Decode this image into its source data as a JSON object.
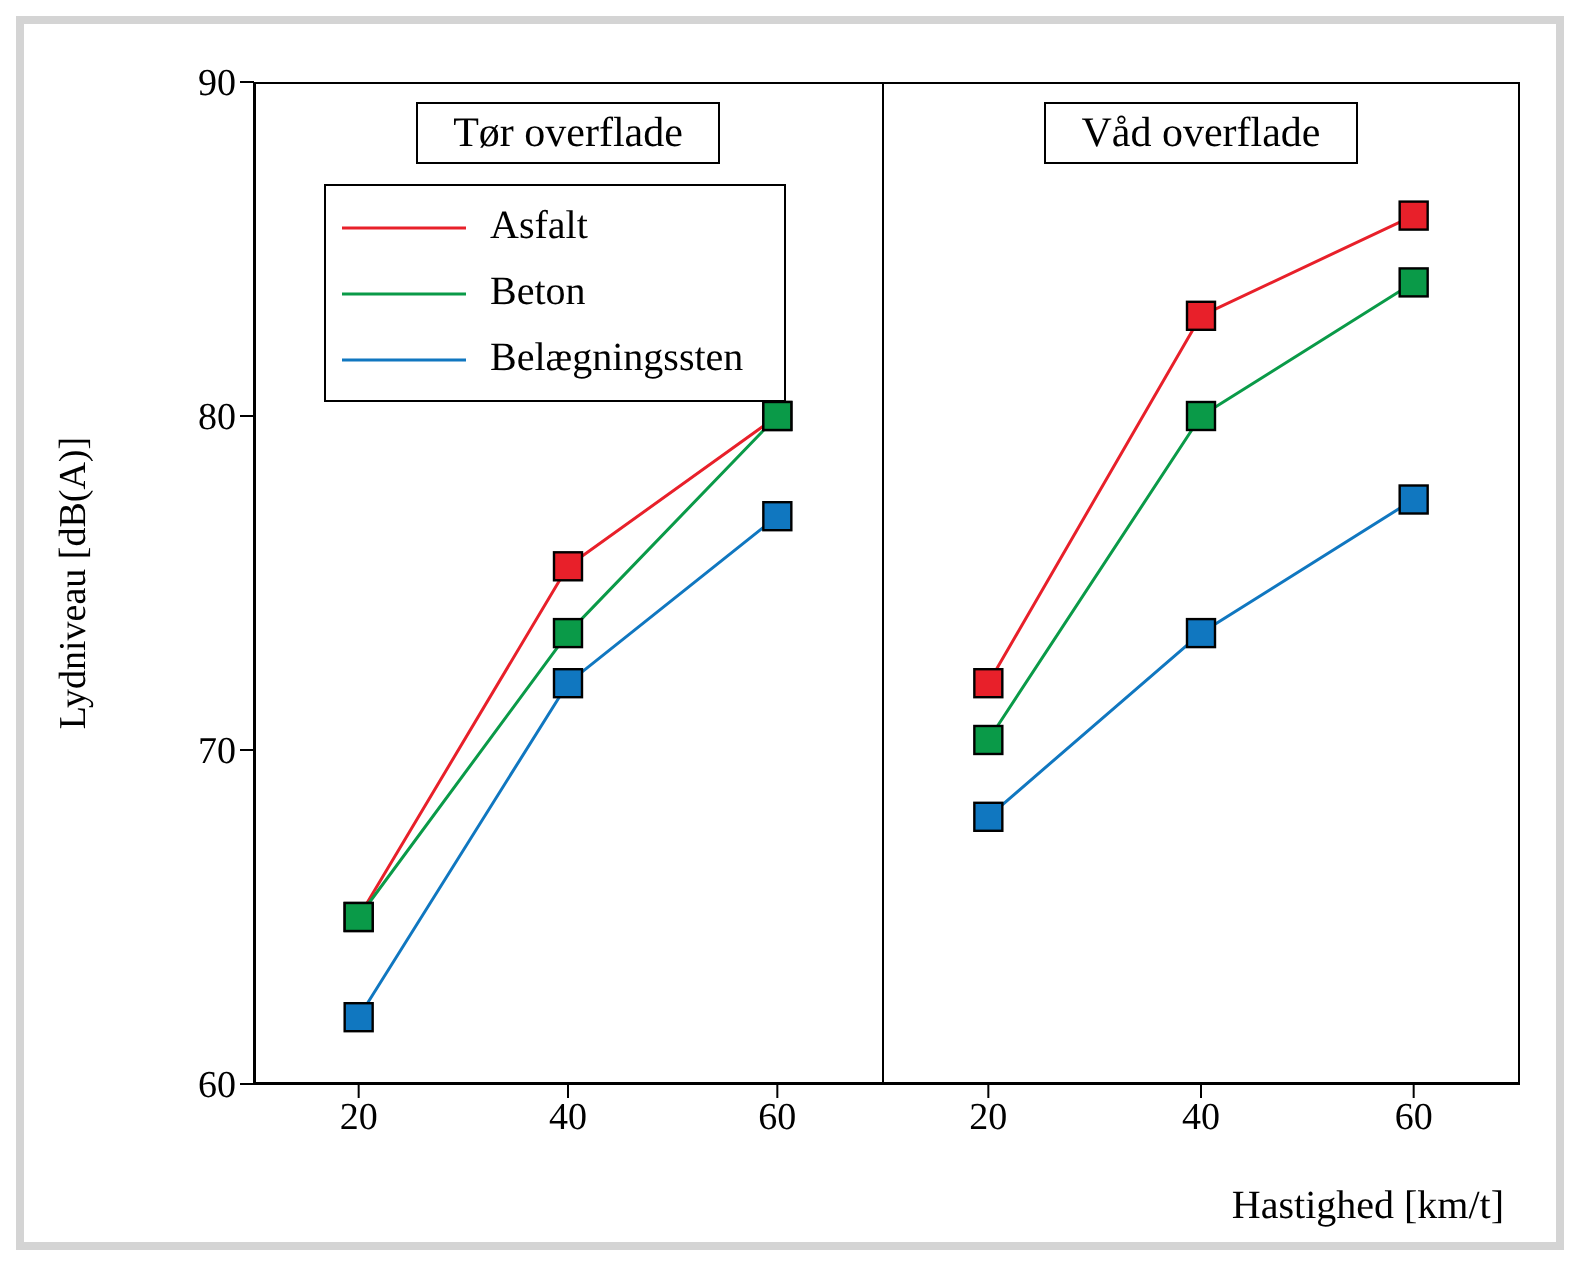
{
  "chart_data": [
    {
      "type": "line",
      "title": "Tør overflade",
      "ylabel": "Lydniveau [dB(A)]",
      "x": [
        20,
        40,
        60
      ],
      "xlim": [
        10,
        70
      ],
      "xticks": [
        20,
        40,
        60
      ],
      "ylim": [
        60,
        90
      ],
      "yticks": [
        60,
        70,
        80,
        90
      ],
      "marker": "square",
      "legend": "top left",
      "grid": false,
      "series": [
        {
          "name": "Asfalt",
          "color": "#e8202a",
          "values": [
            65,
            75.5,
            80
          ]
        },
        {
          "name": "Beton",
          "color": "#0a9a48",
          "values": [
            65,
            73.5,
            80
          ]
        },
        {
          "name": "Belægningssten",
          "color": "#1077c0",
          "values": [
            62,
            72,
            77
          ]
        }
      ]
    },
    {
      "type": "line",
      "title": "Våd overflade",
      "xlabel": "Hastighed [km/t]",
      "x": [
        20,
        40,
        60
      ],
      "xlim": [
        10,
        70
      ],
      "xticks": [
        20,
        40,
        60
      ],
      "ylim": [
        60,
        90
      ],
      "yticks": [
        60,
        70,
        80,
        90
      ],
      "marker": "square",
      "legend": false,
      "grid": false,
      "tick_labels": "x",
      "series": [
        {
          "color": "#e8202a",
          "values": [
            72,
            83,
            86
          ]
        },
        {
          "color": "#0a9a48",
          "values": [
            70.3,
            80,
            84
          ]
        },
        {
          "color": "#1077c0",
          "values": [
            68,
            73.5,
            77.5
          ]
        }
      ]
    }
  ]
}
